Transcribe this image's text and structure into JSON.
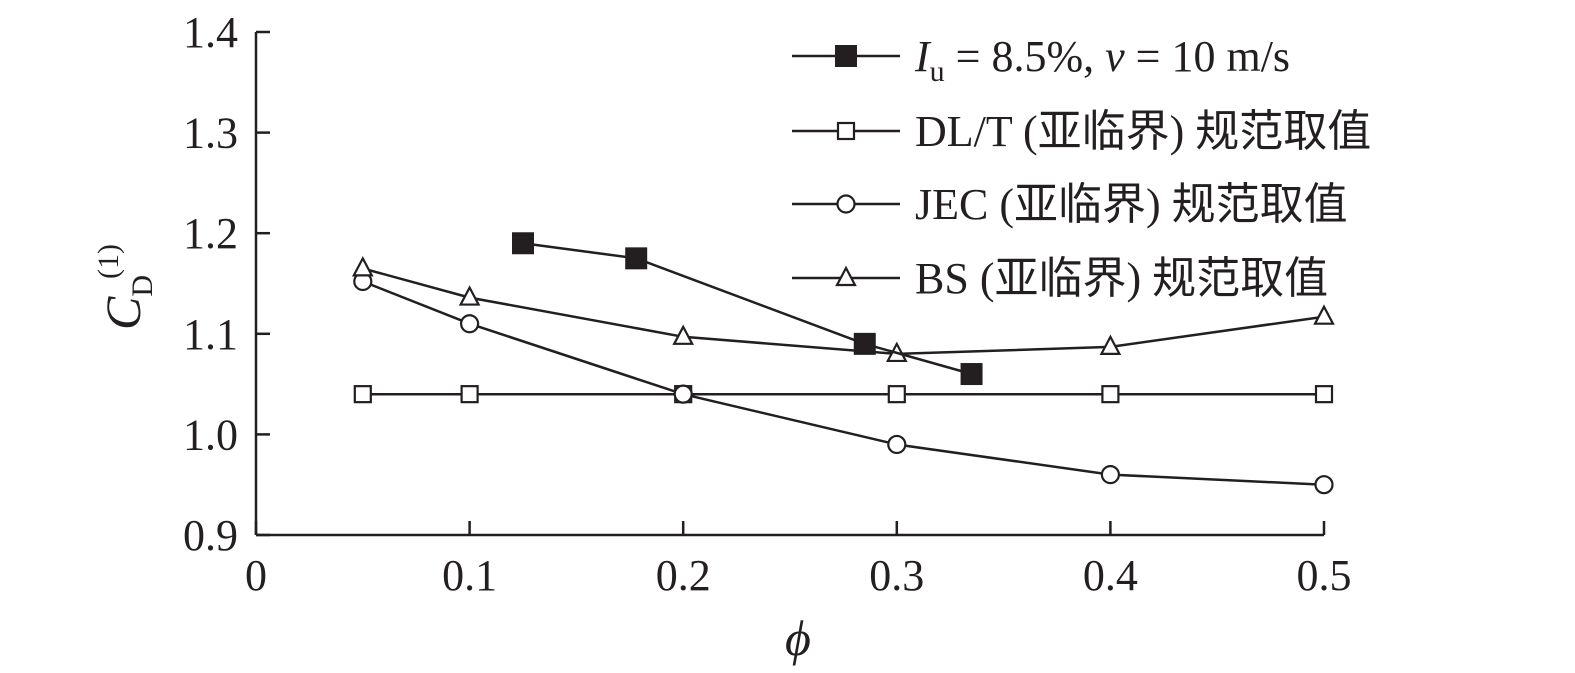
{
  "chart_data": {
    "type": "line",
    "xlabel": "ϕ",
    "ylabel": "C_D^(1)",
    "ylabel_parts": {
      "main": "C",
      "sub": "D",
      "sup": "(1)"
    },
    "xlim": [
      0,
      0.5
    ],
    "ylim": [
      0.9,
      1.4
    ],
    "x_ticks": [
      0,
      0.1,
      0.2,
      0.3,
      0.4,
      0.5
    ],
    "x_tick_labels": [
      "0",
      "0.1",
      "0.2",
      "0.3",
      "0.4",
      "0.5"
    ],
    "y_ticks": [
      0.9,
      1.0,
      1.1,
      1.2,
      1.3,
      1.4
    ],
    "y_tick_labels": [
      "0.9",
      "1.0",
      "1.1",
      "1.2",
      "1.3",
      "1.4"
    ],
    "grid": false,
    "legend_position": "top-right",
    "series": [
      {
        "name": "I_u = 8.5%, v = 10 m/s",
        "name_parts": {
          "I": "I",
          "u": "u",
          "mid": " = 8.5%, ",
          "v": "v",
          "end": " = 10 m/s"
        },
        "marker": "filled-square",
        "x": [
          0.125,
          0.178,
          0.285,
          0.335
        ],
        "y": [
          1.19,
          1.175,
          1.09,
          1.06
        ]
      },
      {
        "name": "DL/T (亚临界) 规范取值",
        "marker": "open-square",
        "x": [
          0.05,
          0.1,
          0.2,
          0.3,
          0.4,
          0.5
        ],
        "y": [
          1.04,
          1.04,
          1.04,
          1.04,
          1.04,
          1.04
        ]
      },
      {
        "name": "JEC (亚临界) 规范取值",
        "marker": "open-circle",
        "x": [
          0.05,
          0.1,
          0.2,
          0.3,
          0.4,
          0.5
        ],
        "y": [
          1.152,
          1.11,
          1.04,
          0.99,
          0.96,
          0.95
        ]
      },
      {
        "name": "BS (亚临界) 规范取值",
        "marker": "open-triangle",
        "x": [
          0.05,
          0.1,
          0.2,
          0.3,
          0.4,
          0.5
        ],
        "y": [
          1.165,
          1.136,
          1.097,
          1.08,
          1.087,
          1.117
        ]
      }
    ],
    "colors": {
      "ink": "#231f20",
      "background": "#ffffff"
    }
  }
}
